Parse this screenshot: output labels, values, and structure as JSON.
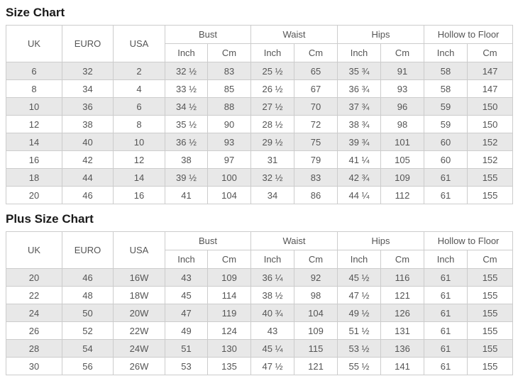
{
  "colors": {
    "stripe": "#e8e8e8",
    "border": "#cccccc",
    "text": "#555555",
    "title": "#1a1a1a",
    "bg": "#ffffff"
  },
  "columns": {
    "uk": "UK",
    "euro": "EURO",
    "usa": "USA",
    "inch": "Inch",
    "cm": "Cm",
    "groups": [
      {
        "id": "bust",
        "label": "Bust"
      },
      {
        "id": "waist",
        "label": "Waist"
      },
      {
        "id": "hips",
        "label": "Hips"
      },
      {
        "id": "hollow-to-floor",
        "label": "Hollow to Floor"
      }
    ]
  },
  "tables": [
    {
      "title": "Size Chart",
      "rows": [
        [
          "6",
          "32",
          "2",
          "32 ½",
          "83",
          "25 ½",
          "65",
          "35 ¾",
          "91",
          "58",
          "147"
        ],
        [
          "8",
          "34",
          "4",
          "33 ½",
          "85",
          "26 ½",
          "67",
          "36 ¾",
          "93",
          "58",
          "147"
        ],
        [
          "10",
          "36",
          "6",
          "34 ½",
          "88",
          "27 ½",
          "70",
          "37 ¾",
          "96",
          "59",
          "150"
        ],
        [
          "12",
          "38",
          "8",
          "35 ½",
          "90",
          "28 ½",
          "72",
          "38 ¾",
          "98",
          "59",
          "150"
        ],
        [
          "14",
          "40",
          "10",
          "36 ½",
          "93",
          "29 ½",
          "75",
          "39 ¾",
          "101",
          "60",
          "152"
        ],
        [
          "16",
          "42",
          "12",
          "38",
          "97",
          "31",
          "79",
          "41 ¼",
          "105",
          "60",
          "152"
        ],
        [
          "18",
          "44",
          "14",
          "39 ½",
          "100",
          "32 ½",
          "83",
          "42 ¾",
          "109",
          "61",
          "155"
        ],
        [
          "20",
          "46",
          "16",
          "41",
          "104",
          "34",
          "86",
          "44 ¼",
          "112",
          "61",
          "155"
        ]
      ]
    },
    {
      "title": "Plus Size Chart",
      "rows": [
        [
          "20",
          "46",
          "16W",
          "43",
          "109",
          "36 ¼",
          "92",
          "45 ½",
          "116",
          "61",
          "155"
        ],
        [
          "22",
          "48",
          "18W",
          "45",
          "114",
          "38 ½",
          "98",
          "47 ½",
          "121",
          "61",
          "155"
        ],
        [
          "24",
          "50",
          "20W",
          "47",
          "119",
          "40 ¾",
          "104",
          "49 ½",
          "126",
          "61",
          "155"
        ],
        [
          "26",
          "52",
          "22W",
          "49",
          "124",
          "43",
          "109",
          "51 ½",
          "131",
          "61",
          "155"
        ],
        [
          "28",
          "54",
          "24W",
          "51",
          "130",
          "45 ¼",
          "115",
          "53 ½",
          "136",
          "61",
          "155"
        ],
        [
          "30",
          "56",
          "26W",
          "53",
          "135",
          "47 ½",
          "121",
          "55 ½",
          "141",
          "61",
          "155"
        ]
      ]
    }
  ]
}
